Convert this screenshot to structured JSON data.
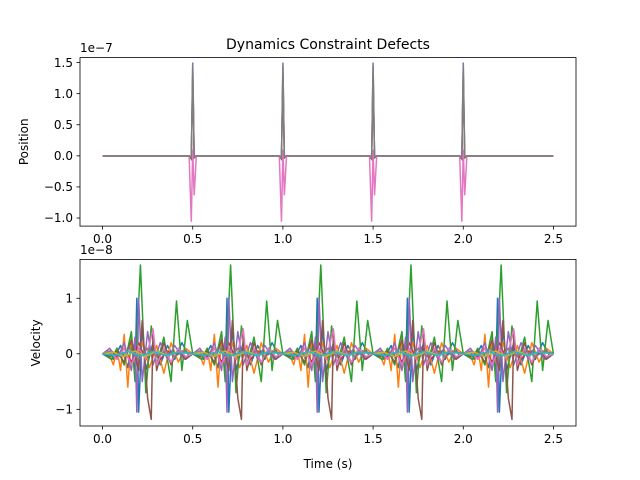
{
  "chart_data": [
    {
      "type": "line",
      "title": "Dynamics Constraint Defects",
      "ylabel": "Position",
      "xlabel": "",
      "offset_text": "1e−7",
      "xlim": [
        -0.125,
        2.625
      ],
      "ylim": [
        -1.13,
        1.58
      ],
      "xticks": [
        0.0,
        0.5,
        1.0,
        1.5,
        2.0,
        2.5
      ],
      "xtick_labels": [
        "0.0",
        "0.5",
        "1.0",
        "1.5",
        "2.0",
        "2.5"
      ],
      "yticks": [
        -1.0,
        -0.5,
        0.0,
        0.5,
        1.0,
        1.5
      ],
      "ytick_labels": [
        "−1.0",
        "−0.5",
        "0.0",
        "0.5",
        "1.0",
        "1.5"
      ],
      "grid": false,
      "series": [
        {
          "color": "#1f77b4",
          "spikes": [
            [
              0.5,
              0.05
            ],
            [
              1.0,
              0.05
            ],
            [
              1.5,
              0.05
            ],
            [
              2.0,
              0.05
            ]
          ],
          "neg": [
            [
              0.5,
              -0.04
            ],
            [
              1.0,
              -0.04
            ],
            [
              1.5,
              -0.04
            ],
            [
              2.0,
              -0.04
            ]
          ]
        },
        {
          "color": "#ff7f0e",
          "spikes": [
            [
              0.5,
              0.03
            ],
            [
              1.0,
              0.03
            ],
            [
              1.5,
              0.03
            ],
            [
              2.0,
              0.03
            ]
          ],
          "neg": [
            [
              0.5,
              -0.03
            ],
            [
              1.0,
              -0.03
            ],
            [
              1.5,
              -0.03
            ],
            [
              2.0,
              -0.03
            ]
          ]
        },
        {
          "color": "#2ca02c",
          "spikes": [
            [
              0.5,
              0.06
            ],
            [
              1.0,
              0.06
            ],
            [
              1.5,
              0.06
            ],
            [
              2.0,
              0.06
            ]
          ],
          "neg": [
            [
              0.5,
              -0.05
            ],
            [
              1.0,
              -0.05
            ],
            [
              1.5,
              -0.05
            ],
            [
              2.0,
              -0.05
            ]
          ]
        },
        {
          "color": "#d62728",
          "spikes": [
            [
              0.5,
              0.02
            ],
            [
              1.0,
              0.02
            ],
            [
              1.5,
              0.02
            ],
            [
              2.0,
              0.02
            ]
          ],
          "neg": [
            [
              0.5,
              -0.02
            ],
            [
              1.0,
              -0.02
            ],
            [
              1.5,
              -0.02
            ],
            [
              2.0,
              -0.02
            ]
          ]
        },
        {
          "color": "#9467bd",
          "spikes": [
            [
              0.5,
              1.5
            ],
            [
              1.0,
              1.5
            ],
            [
              1.5,
              1.5
            ],
            [
              2.0,
              1.5
            ]
          ],
          "neg": [
            [
              0.5,
              -0.02
            ],
            [
              1.0,
              -0.02
            ],
            [
              1.5,
              -0.02
            ],
            [
              2.0,
              -0.02
            ]
          ]
        },
        {
          "color": "#8c564b",
          "spikes": [
            [
              0.5,
              1.3
            ],
            [
              1.0,
              1.3
            ],
            [
              1.5,
              1.3
            ],
            [
              2.0,
              1.3
            ]
          ],
          "neg": [
            [
              0.5,
              -0.05
            ],
            [
              1.0,
              -0.05
            ],
            [
              1.5,
              -0.05
            ],
            [
              2.0,
              -0.05
            ]
          ]
        },
        {
          "color": "#e377c2",
          "spikes": [
            [
              0.5,
              0.1
            ],
            [
              1.0,
              0.1
            ],
            [
              1.5,
              0.1
            ],
            [
              2.0,
              0.1
            ]
          ],
          "neg": [
            [
              0.5,
              -1.06
            ],
            [
              1.0,
              -1.06
            ],
            [
              1.5,
              -1.06
            ],
            [
              2.0,
              -1.06
            ]
          ]
        },
        {
          "color": "#7f7f7f",
          "spikes": [
            [
              0.5,
              1.45
            ],
            [
              1.0,
              1.45
            ],
            [
              1.5,
              1.45
            ],
            [
              2.0,
              1.45
            ]
          ],
          "neg": [
            [
              0.5,
              -0.03
            ],
            [
              1.0,
              -0.03
            ],
            [
              1.5,
              -0.03
            ],
            [
              2.0,
              -0.03
            ]
          ]
        }
      ]
    },
    {
      "type": "line",
      "title": "",
      "ylabel": "Velocity",
      "xlabel": "Time (s)",
      "offset_text": "1e−8",
      "xlim": [
        -0.125,
        2.625
      ],
      "ylim": [
        -1.3,
        1.7
      ],
      "xticks": [
        0.0,
        0.5,
        1.0,
        1.5,
        2.0,
        2.5
      ],
      "xtick_labels": [
        "0.0",
        "0.5",
        "1.0",
        "1.5",
        "2.0",
        "2.5"
      ],
      "yticks": [
        -1,
        0,
        1
      ],
      "ytick_labels": [
        "−1",
        "0",
        "1"
      ],
      "grid": false,
      "period": 0.5,
      "series": [
        {
          "color": "#1f77b4",
          "points": [
            [
              0.0,
              0
            ],
            [
              0.04,
              0.05
            ],
            [
              0.06,
              -0.1
            ],
            [
              0.1,
              0.15
            ],
            [
              0.14,
              -0.25
            ],
            [
              0.16,
              0.2
            ],
            [
              0.18,
              -0.4
            ],
            [
              0.19,
              1.0
            ],
            [
              0.2,
              -1.05
            ],
            [
              0.22,
              0.5
            ],
            [
              0.24,
              -0.3
            ],
            [
              0.28,
              0.2
            ],
            [
              0.32,
              -0.2
            ],
            [
              0.36,
              0.15
            ],
            [
              0.4,
              -0.1
            ],
            [
              0.44,
              0.2
            ],
            [
              0.48,
              -0.05
            ],
            [
              0.5,
              0
            ]
          ]
        },
        {
          "color": "#ff7f0e",
          "points": [
            [
              0.0,
              0
            ],
            [
              0.03,
              0.05
            ],
            [
              0.06,
              -0.2
            ],
            [
              0.08,
              0.1
            ],
            [
              0.1,
              -0.3
            ],
            [
              0.12,
              0.35
            ],
            [
              0.14,
              -0.6
            ],
            [
              0.16,
              0.3
            ],
            [
              0.18,
              -0.15
            ],
            [
              0.22,
              0.2
            ],
            [
              0.26,
              -0.25
            ],
            [
              0.3,
              0.15
            ],
            [
              0.34,
              -0.35
            ],
            [
              0.38,
              0.2
            ],
            [
              0.42,
              -0.15
            ],
            [
              0.46,
              0.1
            ],
            [
              0.5,
              0
            ]
          ]
        },
        {
          "color": "#2ca02c",
          "points": [
            [
              0.0,
              0
            ],
            [
              0.05,
              -0.1
            ],
            [
              0.08,
              0.1
            ],
            [
              0.12,
              -0.2
            ],
            [
              0.16,
              0.4
            ],
            [
              0.18,
              -0.5
            ],
            [
              0.21,
              1.6
            ],
            [
              0.24,
              -0.7
            ],
            [
              0.27,
              0.5
            ],
            [
              0.3,
              -0.2
            ],
            [
              0.34,
              0.3
            ],
            [
              0.38,
              -0.5
            ],
            [
              0.41,
              0.95
            ],
            [
              0.44,
              -0.3
            ],
            [
              0.47,
              0.6
            ],
            [
              0.5,
              0
            ]
          ]
        },
        {
          "color": "#d62728",
          "points": [
            [
              0.0,
              0
            ],
            [
              0.04,
              0.05
            ],
            [
              0.08,
              -0.05
            ],
            [
              0.12,
              0.1
            ],
            [
              0.16,
              -0.15
            ],
            [
              0.2,
              0.2
            ],
            [
              0.24,
              -0.1
            ],
            [
              0.28,
              0.1
            ],
            [
              0.32,
              -0.1
            ],
            [
              0.36,
              0.05
            ],
            [
              0.4,
              -0.05
            ],
            [
              0.44,
              0.05
            ],
            [
              0.5,
              0
            ]
          ]
        },
        {
          "color": "#9467bd",
          "points": [
            [
              0.0,
              0
            ],
            [
              0.04,
              0.1
            ],
            [
              0.08,
              -0.1
            ],
            [
              0.12,
              0.2
            ],
            [
              0.16,
              -0.3
            ],
            [
              0.18,
              0.3
            ],
            [
              0.19,
              -1.05
            ],
            [
              0.2,
              1.0
            ],
            [
              0.22,
              -0.5
            ],
            [
              0.25,
              0.4
            ],
            [
              0.28,
              -0.2
            ],
            [
              0.32,
              0.2
            ],
            [
              0.36,
              -0.1
            ],
            [
              0.4,
              0.15
            ],
            [
              0.45,
              -0.1
            ],
            [
              0.5,
              0
            ]
          ]
        },
        {
          "color": "#8c564b",
          "points": [
            [
              0.0,
              0
            ],
            [
              0.04,
              -0.05
            ],
            [
              0.08,
              0.05
            ],
            [
              0.12,
              -0.15
            ],
            [
              0.16,
              0.25
            ],
            [
              0.2,
              -0.3
            ],
            [
              0.22,
              0.6
            ],
            [
              0.25,
              -0.8
            ],
            [
              0.27,
              -1.18
            ],
            [
              0.28,
              0.4
            ],
            [
              0.3,
              -0.3
            ],
            [
              0.34,
              0.2
            ],
            [
              0.38,
              -0.2
            ],
            [
              0.42,
              0.1
            ],
            [
              0.46,
              -0.1
            ],
            [
              0.5,
              0
            ]
          ]
        },
        {
          "color": "#e377c2",
          "points": [
            [
              0.0,
              0
            ],
            [
              0.04,
              0.05
            ],
            [
              0.08,
              -0.1
            ],
            [
              0.12,
              0.1
            ],
            [
              0.16,
              -0.2
            ],
            [
              0.2,
              0.1
            ],
            [
              0.24,
              -0.1
            ],
            [
              0.28,
              0.45
            ],
            [
              0.3,
              -0.2
            ],
            [
              0.34,
              0.1
            ],
            [
              0.38,
              -0.15
            ],
            [
              0.42,
              0.1
            ],
            [
              0.46,
              -0.05
            ],
            [
              0.5,
              0
            ]
          ]
        },
        {
          "color": "#7f7f7f",
          "points": [
            [
              0.0,
              0
            ],
            [
              0.05,
              0.05
            ],
            [
              0.1,
              -0.05
            ],
            [
              0.15,
              0.1
            ],
            [
              0.2,
              -0.1
            ],
            [
              0.25,
              0.1
            ],
            [
              0.3,
              -0.05
            ],
            [
              0.35,
              0.05
            ],
            [
              0.4,
              -0.05
            ],
            [
              0.45,
              0.05
            ],
            [
              0.5,
              0
            ]
          ]
        },
        {
          "color": "#bcbd22",
          "points": [
            [
              0.0,
              0
            ],
            [
              0.06,
              0.03
            ],
            [
              0.12,
              -0.05
            ],
            [
              0.18,
              0.05
            ],
            [
              0.24,
              -0.05
            ],
            [
              0.3,
              0.05
            ],
            [
              0.36,
              -0.03
            ],
            [
              0.42,
              0.03
            ],
            [
              0.5,
              0
            ]
          ]
        },
        {
          "color": "#17becf",
          "points": [
            [
              0.0,
              0
            ],
            [
              0.07,
              -0.03
            ],
            [
              0.14,
              0.04
            ],
            [
              0.21,
              -0.04
            ],
            [
              0.28,
              0.04
            ],
            [
              0.35,
              -0.03
            ],
            [
              0.42,
              0.03
            ],
            [
              0.5,
              0
            ]
          ]
        }
      ]
    }
  ]
}
